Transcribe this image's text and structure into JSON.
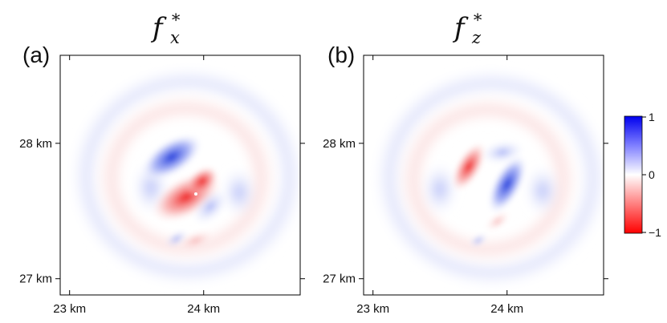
{
  "chart_data": {
    "type": "heatmap",
    "panels": [
      {
        "label": "(a)",
        "title_base": "f",
        "title_sup": "∗",
        "title_sub": "x",
        "x_ticks": [
          {
            "value": 23,
            "label": "23 km"
          },
          {
            "value": 24,
            "label": "24 km"
          }
        ],
        "y_ticks": [
          {
            "value": 28,
            "label": "28 km"
          },
          {
            "value": 27,
            "label": "27 km"
          }
        ],
        "xlim": [
          22.93,
          24.72
        ],
        "ylim": [
          26.88,
          28.65
        ],
        "colorbar": false
      },
      {
        "label": "(b)",
        "title_base": "f",
        "title_sup": "∗",
        "title_sub": "z",
        "x_ticks": [
          {
            "value": 23,
            "label": "23 km"
          },
          {
            "value": 24,
            "label": "24 km"
          }
        ],
        "y_ticks": [
          {
            "value": 28,
            "label": "28 km"
          },
          {
            "value": 27,
            "label": "27 km"
          }
        ],
        "xlim": [
          22.93,
          24.72
        ],
        "ylim": [
          26.88,
          28.65
        ],
        "colorbar": true
      }
    ],
    "colorbar": {
      "ticks": [
        "1",
        "0",
        "−1"
      ],
      "range": [
        -1,
        1
      ],
      "colors": {
        "max": "#0000ff",
        "mid": "#ffffff",
        "min": "#ff0000"
      }
    }
  }
}
